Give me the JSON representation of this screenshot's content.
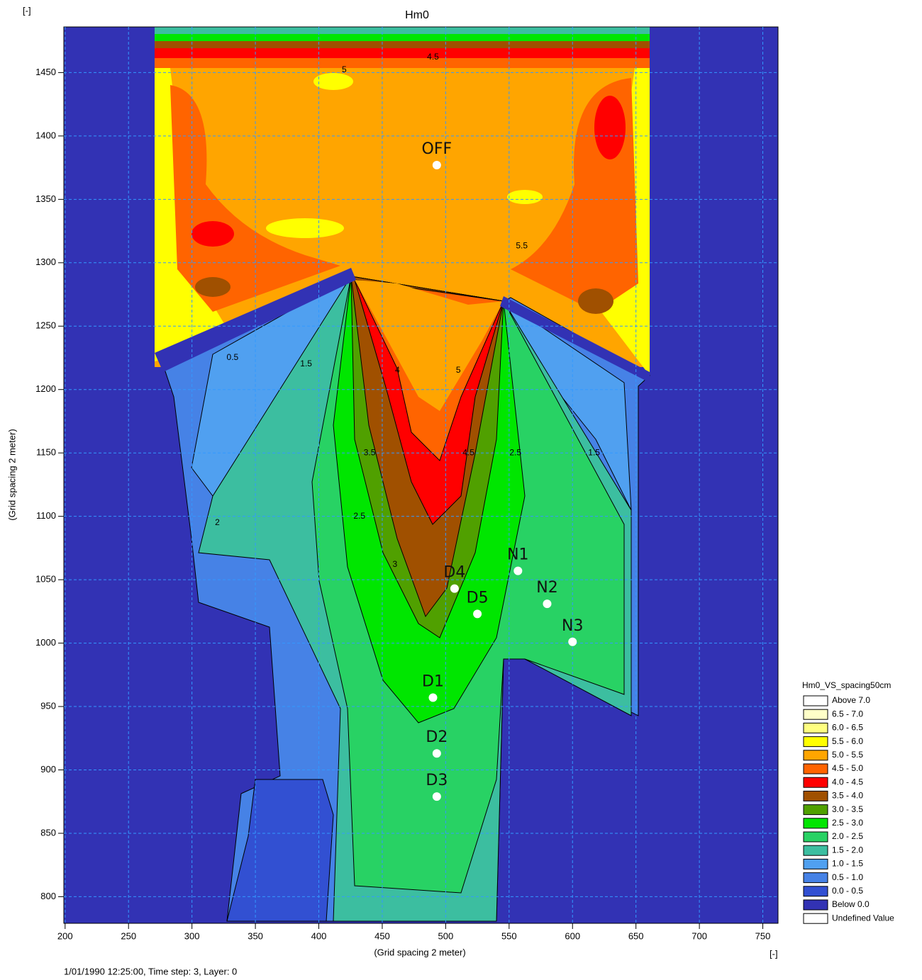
{
  "chart_data": {
    "type": "contour-map",
    "title": "Hm0",
    "corner_unit": "[-]",
    "x_unit": "[-]",
    "xlabel": "(Grid spacing 2 meter)",
    "ylabel": "(Grid spacing 2 meter)",
    "footer": "1/01/1990 12:25:00, Time step: 3, Layer: 0",
    "xlim": [
      199,
      762
    ],
    "ylim": [
      779,
      1486
    ],
    "xticks": [
      200,
      250,
      300,
      350,
      400,
      450,
      500,
      550,
      600,
      650,
      700,
      750
    ],
    "yticks": [
      800,
      850,
      900,
      950,
      1000,
      1050,
      1100,
      1150,
      1200,
      1250,
      1300,
      1350,
      1400,
      1450
    ],
    "grid": true,
    "points": [
      {
        "label": "OFF",
        "x": 493,
        "y": 1377
      },
      {
        "label": "D4",
        "x": 507,
        "y": 1043
      },
      {
        "label": "D5",
        "x": 525,
        "y": 1023
      },
      {
        "label": "N1",
        "x": 557,
        "y": 1057
      },
      {
        "label": "N2",
        "x": 580,
        "y": 1031
      },
      {
        "label": "N3",
        "x": 600,
        "y": 1001
      },
      {
        "label": "D1",
        "x": 490,
        "y": 957
      },
      {
        "label": "D2",
        "x": 493,
        "y": 913
      },
      {
        "label": "D3",
        "x": 493,
        "y": 879
      }
    ],
    "annotations": [
      {
        "text": "4.5",
        "x": 490,
        "y": 1462
      },
      {
        "text": "5",
        "x": 420,
        "y": 1452
      },
      {
        "text": "5.5",
        "x": 560,
        "y": 1313
      },
      {
        "text": "4",
        "x": 462,
        "y": 1215
      },
      {
        "text": "5",
        "x": 510,
        "y": 1215
      },
      {
        "text": "3.5",
        "x": 440,
        "y": 1150
      },
      {
        "text": "4.5",
        "x": 518,
        "y": 1150
      },
      {
        "text": "2.5",
        "x": 555,
        "y": 1150
      },
      {
        "text": "1.5",
        "x": 390,
        "y": 1220
      },
      {
        "text": "0.5",
        "x": 332,
        "y": 1225
      },
      {
        "text": "3",
        "x": 460,
        "y": 1062
      },
      {
        "text": "2",
        "x": 320,
        "y": 1095
      },
      {
        "text": "2.5",
        "x": 432,
        "y": 1100
      },
      {
        "text": "1.5",
        "x": 617,
        "y": 1150
      }
    ],
    "legend": {
      "title": "Hm0_VS_spacing50cm",
      "entries": [
        {
          "label": "Above 7.0",
          "color": "#ffffff"
        },
        {
          "label": "6.5 - 7.0",
          "color": "#ffffc8"
        },
        {
          "label": "6.0 - 6.5",
          "color": "#ffff80"
        },
        {
          "label": "5.5 - 6.0",
          "color": "#ffff00"
        },
        {
          "label": "5.0 - 5.5",
          "color": "#ffa500"
        },
        {
          "label": "4.5 - 5.0",
          "color": "#ff6400"
        },
        {
          "label": "4.0 - 4.5",
          "color": "#ff0000"
        },
        {
          "label": "3.5 - 4.0",
          "color": "#a05000"
        },
        {
          "label": "3.0 - 3.5",
          "color": "#50a000"
        },
        {
          "label": "2.5 - 3.0",
          "color": "#00e600"
        },
        {
          "label": "2.0 - 2.5",
          "color": "#28d264"
        },
        {
          "label": "1.5 - 2.0",
          "color": "#3cbea0"
        },
        {
          "label": "1.0 - 1.5",
          "color": "#50a0f0"
        },
        {
          "label": "0.5 - 1.0",
          "color": "#4682e6"
        },
        {
          "label": "0.0 - 0.5",
          "color": "#3250d2"
        },
        {
          "label": "Below 0.0",
          "color": "#3232b4"
        },
        {
          "label": "Undefined Value",
          "color": "#ffffff"
        }
      ]
    }
  }
}
